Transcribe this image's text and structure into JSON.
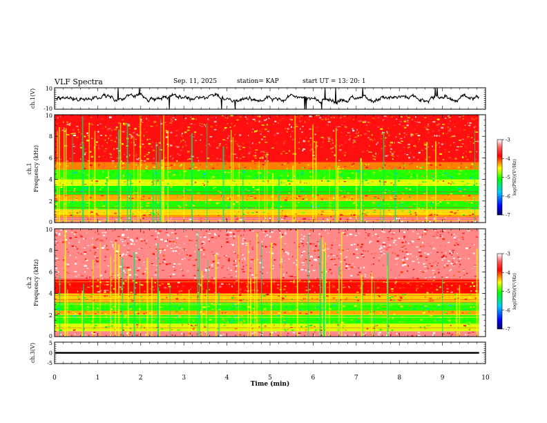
{
  "header": {
    "title": "VLF Spectra",
    "date": "Sep. 11, 2025",
    "station": "station= KAP",
    "start": "start  UT  =   13: 20: 1"
  },
  "chart_data": [
    {
      "type": "line",
      "panel": "ch1-waveform",
      "ylabel": "ch.1(V)",
      "ylim": [
        -10,
        10
      ],
      "yticks": [
        "10",
        "-10"
      ],
      "xlim": [
        0,
        10
      ],
      "data_end_min": 9.85,
      "series_mean": 0,
      "series_amplitude": 4
    },
    {
      "type": "heatmap",
      "panel": "ch1-spectrogram",
      "title": "ch.1",
      "ylabel": "Frequency  (kHz)",
      "ylim": [
        0,
        10
      ],
      "yticks": [
        "0",
        "2",
        "4",
        "6",
        "8",
        "10"
      ],
      "xlim": [
        0,
        10
      ],
      "colorbar": {
        "label": "log(PSD)(V²/Hz)",
        "range": [
          -7,
          -3
        ],
        "ticks": [
          "-3",
          "-4",
          "-5",
          "-6",
          "-7"
        ]
      },
      "bands": [
        {
          "from_khz": 0.0,
          "to_khz": 0.5,
          "level": -3.3
        },
        {
          "from_khz": 0.5,
          "to_khz": 1.2,
          "level": -4.4
        },
        {
          "from_khz": 1.2,
          "to_khz": 2.0,
          "level": -5.0
        },
        {
          "from_khz": 2.0,
          "to_khz": 2.6,
          "level": -4.3
        },
        {
          "from_khz": 2.6,
          "to_khz": 3.4,
          "level": -5.1
        },
        {
          "from_khz": 3.4,
          "to_khz": 4.0,
          "level": -4.6
        },
        {
          "from_khz": 4.0,
          "to_khz": 4.9,
          "level": -5.0
        },
        {
          "from_khz": 4.9,
          "to_khz": 5.6,
          "level": -4.2
        },
        {
          "from_khz": 5.6,
          "to_khz": 10.0,
          "level": -3.8
        }
      ]
    },
    {
      "type": "heatmap",
      "panel": "ch2-spectrogram",
      "title": "ch.2",
      "ylabel": "Frequency  (kHz)",
      "ylim": [
        0,
        10
      ],
      "yticks": [
        "0",
        "2",
        "4",
        "6",
        "8",
        "10"
      ],
      "xlim": [
        0,
        10
      ],
      "colorbar": {
        "label": "log(PSD)(V²/Hz)",
        "range": [
          -7,
          -3
        ],
        "ticks": [
          "-3",
          "-4",
          "-5",
          "-6",
          "-7"
        ]
      },
      "bands": [
        {
          "from_khz": 0.0,
          "to_khz": 0.5,
          "level": -3.3
        },
        {
          "from_khz": 0.5,
          "to_khz": 1.2,
          "level": -4.6
        },
        {
          "from_khz": 1.2,
          "to_khz": 2.0,
          "level": -5.0
        },
        {
          "from_khz": 2.0,
          "to_khz": 2.4,
          "level": -4.3
        },
        {
          "from_khz": 2.4,
          "to_khz": 3.2,
          "level": -5.0
        },
        {
          "from_khz": 3.2,
          "to_khz": 4.0,
          "level": -4.4
        },
        {
          "from_khz": 4.0,
          "to_khz": 5.3,
          "level": -3.9
        },
        {
          "from_khz": 5.3,
          "to_khz": 10.0,
          "level": -3.3
        }
      ]
    },
    {
      "type": "line",
      "panel": "ch3-waveform",
      "ylabel": "ch.3(V)",
      "ylim": [
        -5,
        5
      ],
      "yticks": [
        "5",
        "0",
        "-5"
      ],
      "xlim": [
        0,
        10
      ],
      "data_end_min": 9.85,
      "series_mean": 0,
      "series_amplitude": 0.4
    }
  ],
  "xaxis": {
    "label": "Time  (min)",
    "ticks": [
      "0",
      "1",
      "2",
      "3",
      "4",
      "5",
      "6",
      "7",
      "8",
      "9",
      "10"
    ]
  },
  "colors": {
    "low": "#000080",
    "mid": "#00ff00",
    "high": "#ff0000",
    "max": "#ffffff"
  }
}
